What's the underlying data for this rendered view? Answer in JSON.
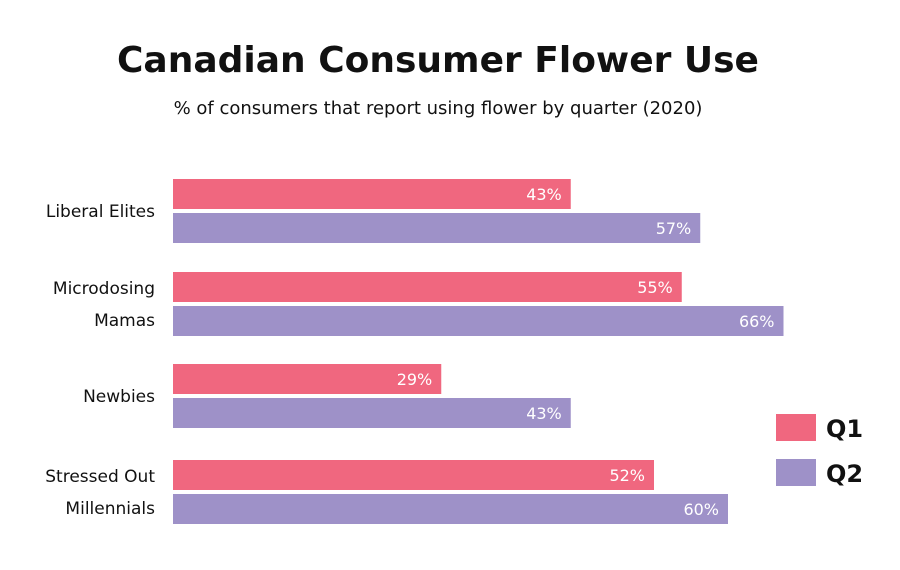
{
  "chart_data": {
    "type": "bar",
    "orientation": "horizontal",
    "title": "Canadian Consumer Flower Use",
    "subtitle": "% of consumers that report using flower by quarter (2020)",
    "categories": [
      [
        "Liberal Elites"
      ],
      [
        "Microdosing",
        "Mamas"
      ],
      [
        "Newbies"
      ],
      [
        "Stressed Out",
        "Millennials"
      ]
    ],
    "series": [
      {
        "name": "Q1",
        "color": "#F0677F",
        "values": [
          43,
          55,
          29,
          52
        ],
        "labels": [
          "43%",
          "55%",
          "29%",
          "52%"
        ]
      },
      {
        "name": "Q2",
        "color": "#9E91C8",
        "values": [
          57,
          66,
          43,
          60
        ],
        "labels": [
          "57%",
          "66%",
          "43%",
          "60%"
        ]
      }
    ],
    "unit": "%",
    "xlim": [
      0,
      100
    ],
    "grid": false,
    "legend_position": "right"
  }
}
